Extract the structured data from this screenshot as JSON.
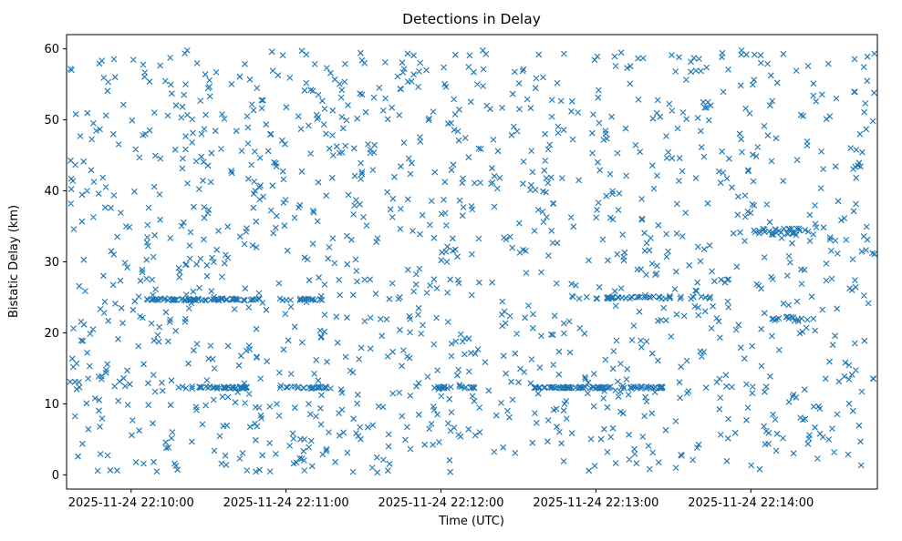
{
  "figure": {
    "background": "#ffffff",
    "spine_color": "#000000",
    "tick_color": "#000000"
  },
  "chart_data": {
    "type": "scatter",
    "title": "Detections in Delay",
    "xlabel": "Time (UTC)",
    "ylabel": "Bistatic Delay (km)",
    "marker": "x",
    "marker_color": "#1f77b4",
    "marker_size_px": 6,
    "legend": "none",
    "grid": false,
    "x_axis": {
      "tick_seconds": [
        0,
        60,
        120,
        180,
        240
      ],
      "tick_labels": [
        "2025-11-24 22:10:00",
        "2025-11-24 22:11:00",
        "2025-11-24 22:12:00",
        "2025-11-24 22:13:00",
        "2025-11-24 22:14:00"
      ],
      "domain_seconds": [
        -25,
        289
      ]
    },
    "y_axis": {
      "ticks": [
        0,
        10,
        20,
        30,
        40,
        50,
        60
      ],
      "domain": [
        -2,
        62
      ]
    },
    "point_generator": {
      "comment": "Dense uniform detection cloud plus horizontal dense streaks visible at ~12.3 km and ~24.7-25 km bistatic delay",
      "seed": 20251124,
      "uniform": {
        "count": 1400,
        "x_range": [
          -24,
          288
        ],
        "y_range": [
          0.3,
          60
        ]
      },
      "dense_streaks": [
        {
          "y": 24.7,
          "x_range": [
            5,
            50
          ],
          "count": 70,
          "y_jitter": 0.15
        },
        {
          "y": 24.7,
          "x_range": [
            57,
            74
          ],
          "count": 18,
          "y_jitter": 0.15
        },
        {
          "y": 12.3,
          "x_range": [
            18,
            45
          ],
          "count": 40,
          "y_jitter": 0.15
        },
        {
          "y": 12.3,
          "x_range": [
            60,
            78
          ],
          "count": 24,
          "y_jitter": 0.15
        },
        {
          "y": 12.3,
          "x_range": [
            118,
            133
          ],
          "count": 20,
          "y_jitter": 0.15
        },
        {
          "y": 12.3,
          "x_range": [
            156,
            186
          ],
          "count": 60,
          "y_jitter": 0.12
        },
        {
          "y": 12.3,
          "x_range": [
            189,
            207
          ],
          "count": 24,
          "y_jitter": 0.15
        },
        {
          "y": 25.0,
          "x_range": [
            170,
            226
          ],
          "count": 45,
          "y_jitter": 0.2
        },
        {
          "y": 34.2,
          "x_range": [
            241,
            259
          ],
          "count": 26,
          "y_jitter": 0.5
        },
        {
          "y": 21.9,
          "x_range": [
            248,
            263
          ],
          "count": 14,
          "y_jitter": 0.4
        }
      ]
    }
  }
}
